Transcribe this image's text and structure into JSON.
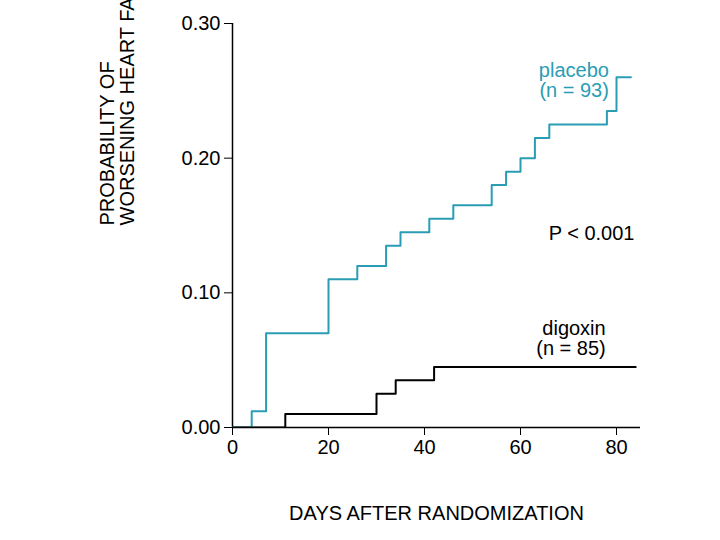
{
  "chart_data": {
    "type": "line",
    "line_style": "step",
    "x_label": "DAYS AFTER RANDOMIZATION",
    "y_label": "PROBABILITY OF\nWORSENING HEART FAILURE",
    "annotations": [
      "P < 0.001"
    ],
    "xlim": [
      0,
      85
    ],
    "xticks": [
      0,
      20,
      40,
      60,
      80
    ],
    "ylim": [
      0,
      0.3
    ],
    "yticks": [
      {
        "value": 0,
        "label": "0.00"
      },
      {
        "value": 0.1,
        "label": "0.10"
      },
      {
        "value": 0.2,
        "label": "0.20"
      },
      {
        "value": 0.3,
        "label": "0.30"
      }
    ],
    "series": [
      {
        "name": "placebo",
        "label": "(n = 93)",
        "color": "#2a9db5",
        "x": [
          0,
          4,
          7,
          20,
          26,
          32,
          35,
          41,
          46,
          54,
          57,
          60,
          63,
          66,
          78,
          80,
          83
        ],
        "values": [
          0,
          0.012,
          0.07,
          0.11,
          0.12,
          0.135,
          0.145,
          0.155,
          0.165,
          0.18,
          0.19,
          0.2,
          0.215,
          0.225,
          0.235,
          0.26,
          0.26
        ]
      },
      {
        "name": "digoxin",
        "label": "(n = 85)",
        "color": "#000000",
        "x": [
          0,
          11,
          30,
          34,
          42,
          84
        ],
        "values": [
          0,
          0.01,
          0.025,
          0.035,
          0.045,
          0.045
        ]
      }
    ]
  }
}
